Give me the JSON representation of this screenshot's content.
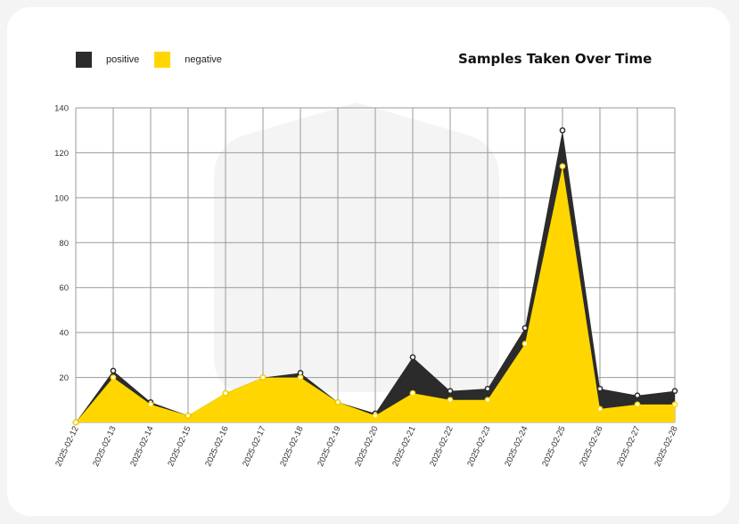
{
  "chart_data": {
    "type": "area",
    "title": "Samples Taken Over Time",
    "xlabel": "",
    "ylabel": "",
    "x": [
      "2025-02-12",
      "2025-02-13",
      "2025-02-14",
      "2025-02-15",
      "2025-02-16",
      "2025-02-17",
      "2025-02-18",
      "2025-02-19",
      "2025-02-20",
      "2025-02-21",
      "2025-02-22",
      "2025-02-23",
      "2025-02-24",
      "2025-02-25",
      "2025-02-26",
      "2025-02-27",
      "2025-02-28"
    ],
    "series": [
      {
        "name": "positive",
        "color": "#2b2b2b",
        "values": [
          0,
          23,
          9,
          3,
          13,
          20,
          22,
          9,
          4,
          29,
          14,
          15,
          42,
          130,
          15,
          12,
          14
        ]
      },
      {
        "name": "negative",
        "color": "#ffd600",
        "values": [
          0,
          20,
          8,
          3,
          13,
          20,
          20,
          9,
          3,
          13,
          10,
          10,
          35,
          114,
          6,
          8,
          8
        ]
      }
    ],
    "ylim": [
      0,
      140
    ],
    "yticks": [
      20,
      40,
      60,
      80,
      100,
      120,
      140
    ],
    "grid": true,
    "legend_position": "top-left"
  }
}
